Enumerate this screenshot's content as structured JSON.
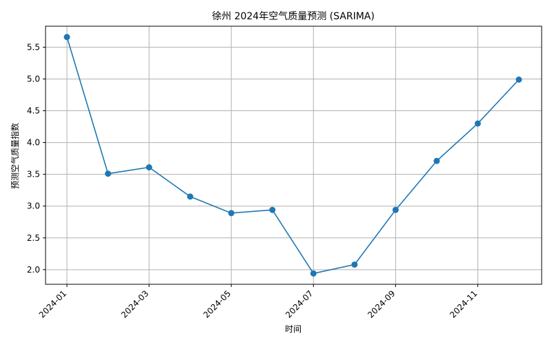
{
  "chart_data": {
    "type": "line",
    "title": "徐州 2024年空气质量预测 (SARIMA)",
    "xlabel": "时间",
    "ylabel": "预测空气质量指数",
    "x": [
      "2024-01",
      "2024-02",
      "2024-03",
      "2024-04",
      "2024-05",
      "2024-06",
      "2024-07",
      "2024-08",
      "2024-09",
      "2024-10",
      "2024-11",
      "2024-12"
    ],
    "x_tick_labels": [
      "2024-01",
      "2024-03",
      "2024-05",
      "2024-07",
      "2024-09",
      "2024-11"
    ],
    "y_tick_labels": [
      "2.0",
      "2.5",
      "3.0",
      "3.5",
      "4.0",
      "4.5",
      "5.0",
      "5.5"
    ],
    "series": [
      {
        "values": [
          5.66,
          3.51,
          3.61,
          3.15,
          2.89,
          2.94,
          1.94,
          2.08,
          2.94,
          3.71,
          4.3,
          4.99
        ]
      }
    ],
    "ylim": [
      1.77,
      5.83
    ],
    "grid": true,
    "line_color": "#1f77b4"
  }
}
